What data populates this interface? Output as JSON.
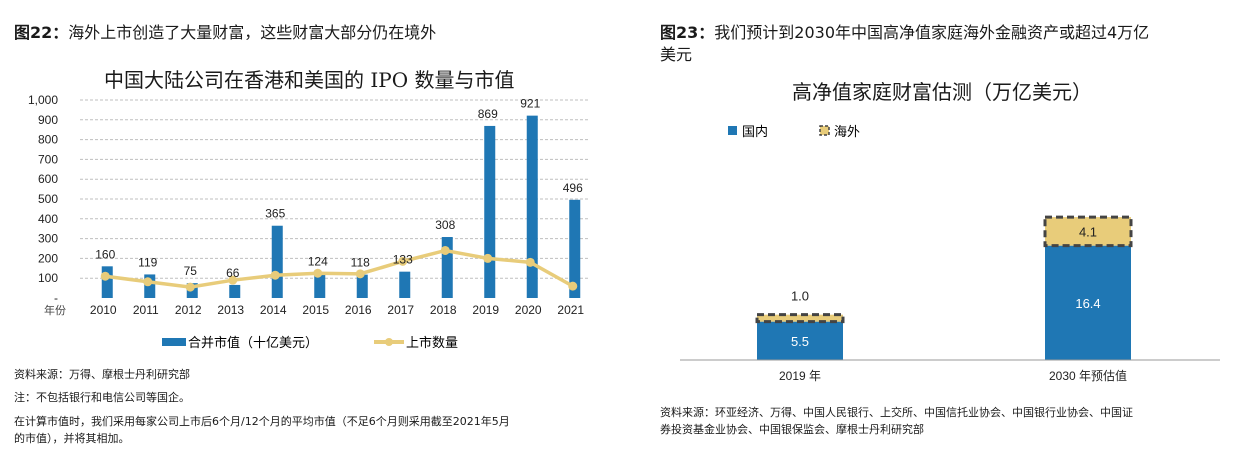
{
  "left": {
    "fig_number": "图22：",
    "fig_title": "海外上市创造了大量财富，这些财富大部分仍在境外",
    "sources": [
      "资料来源：万得、摩根士丹利研究部",
      "注：不包括银行和电信公司等国企。",
      "在计算市值时，我们采用每家公司上市后6个月/12个月的平均市值（不足6个月则采用截至2021年5月",
      "的市值），并将其相加。"
    ]
  },
  "right": {
    "fig_number": "图23：",
    "fig_title": "我们预计到2030年中国高净值家庭海外金融资产或超过4万亿",
    "fig_title_line2": "美元",
    "sources": [
      "资料来源：环亚经济、万得、中国人民银行、上交所、中国信托业协会、中国银行业协会、中国证",
      "券投资基金业协会、中国银保监会、摩根士丹利研究部"
    ]
  },
  "colors": {
    "bar_blue": "#1f77b4",
    "line_gold": "#e8cc7a",
    "grid": "#bfbfbf",
    "dash": "#444444"
  },
  "chart_data": [
    {
      "type": "bar+line",
      "title": "中国大陆公司在香港和美国的 IPO 数量与市值",
      "x_prefix": "年份",
      "categories": [
        "2010",
        "2011",
        "2012",
        "2013",
        "2014",
        "2015",
        "2016",
        "2017",
        "2018",
        "2019",
        "2020",
        "2021"
      ],
      "series": [
        {
          "name": "合并市值（十亿美元）",
          "type": "bar",
          "values": [
            160,
            119,
            75,
            66,
            365,
            124,
            118,
            133,
            308,
            869,
            921,
            496
          ]
        },
        {
          "name": "上市数量",
          "type": "line",
          "values": [
            110,
            82,
            55,
            90,
            115,
            125,
            122,
            185,
            240,
            200,
            180,
            60
          ]
        }
      ],
      "yticks": [
        "-",
        "100",
        "200",
        "300",
        "400",
        "500",
        "600",
        "700",
        "800",
        "900",
        "1,000"
      ],
      "ylim": [
        0,
        1000
      ],
      "grid": true
    },
    {
      "type": "stacked_bar",
      "title": "高净值家庭财富估测（万亿美元）",
      "categories": [
        "2019 年",
        "2030 年预估值"
      ],
      "series": [
        {
          "name": "国内",
          "values": [
            5.5,
            16.4
          ]
        },
        {
          "name": "海外",
          "values": [
            1.0,
            4.1
          ]
        }
      ],
      "labels": [
        [
          "5.5",
          "16.4"
        ],
        [
          "1.0",
          "4.1"
        ]
      ],
      "ylim": [
        0,
        25
      ]
    }
  ]
}
